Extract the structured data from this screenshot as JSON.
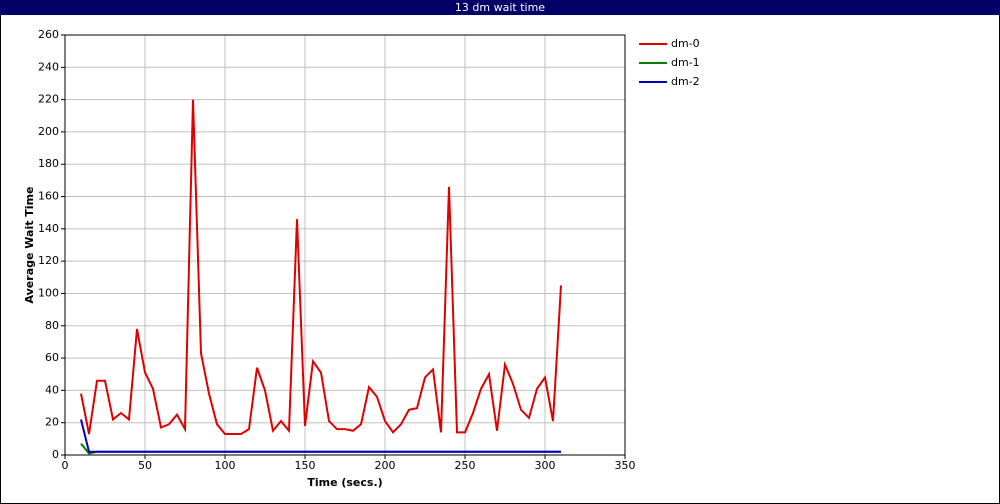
{
  "chart_data": {
    "type": "line",
    "title": "13 dm wait time",
    "x_label": "Time (secs.)",
    "y_label": "Average Wait Time",
    "x": [
      10,
      15,
      20,
      25,
      30,
      35,
      40,
      45,
      50,
      55,
      60,
      65,
      70,
      75,
      80,
      85,
      90,
      95,
      100,
      105,
      110,
      115,
      120,
      125,
      130,
      135,
      140,
      145,
      150,
      155,
      160,
      165,
      170,
      175,
      180,
      185,
      190,
      195,
      200,
      205,
      210,
      215,
      220,
      225,
      230,
      235,
      240,
      245,
      250,
      255,
      260,
      265,
      270,
      275,
      280,
      285,
      290,
      295,
      300,
      305,
      310
    ],
    "series": [
      {
        "name": "dm-0",
        "color": "#e00000",
        "values": [
          38,
          13,
          46,
          46,
          22,
          26,
          22,
          78,
          51,
          41,
          17,
          19,
          25,
          16,
          220,
          63,
          38,
          19,
          13,
          13,
          13,
          16,
          54,
          40,
          15,
          21,
          15,
          146,
          18,
          58,
          51,
          21,
          16,
          16,
          15,
          19,
          42,
          36,
          21,
          14,
          19,
          28,
          29,
          48,
          53,
          14,
          166,
          14,
          14,
          26,
          41,
          50,
          15,
          56,
          44,
          28,
          23,
          41,
          48,
          21,
          105
        ]
      },
      {
        "name": "dm-1",
        "color": "#008000",
        "values": [
          7,
          1,
          2,
          2,
          2,
          2,
          2,
          2,
          2,
          2,
          2,
          2,
          2,
          2,
          2,
          2,
          2,
          2,
          2,
          2,
          2,
          2,
          2,
          2,
          2,
          2,
          2,
          2,
          2,
          2,
          2,
          2,
          2,
          2,
          2,
          2,
          2,
          2,
          2,
          2,
          2,
          2,
          2,
          2,
          2,
          2,
          2,
          2,
          2,
          2,
          2,
          2,
          2,
          2,
          2,
          2,
          2,
          2,
          2,
          2,
          2
        ]
      },
      {
        "name": "dm-2",
        "color": "#0000c0",
        "values": [
          22,
          2,
          2,
          2,
          2,
          2,
          2,
          2,
          2,
          2,
          2,
          2,
          2,
          2,
          2,
          2,
          2,
          2,
          2,
          2,
          2,
          2,
          2,
          2,
          2,
          2,
          2,
          2,
          2,
          2,
          2,
          2,
          2,
          2,
          2,
          2,
          2,
          2,
          2,
          2,
          2,
          2,
          2,
          2,
          2,
          2,
          2,
          2,
          2,
          2,
          2,
          2,
          2,
          2,
          2,
          2,
          2,
          2,
          2,
          2,
          2
        ]
      }
    ],
    "xlim": [
      0,
      350
    ],
    "xticks": [
      0,
      50,
      100,
      150,
      200,
      250,
      300,
      350
    ],
    "ylim": [
      0,
      260
    ],
    "yticks": [
      0,
      20,
      40,
      60,
      80,
      100,
      120,
      140,
      160,
      180,
      200,
      220,
      240,
      260
    ],
    "grid": true
  }
}
